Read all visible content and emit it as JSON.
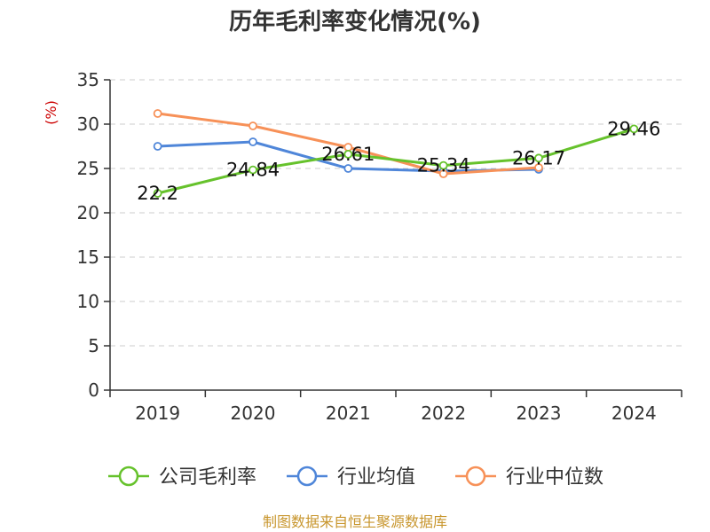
{
  "chart_data": {
    "type": "line",
    "title": "历年毛利率变化情况(%)",
    "unit_label": "(%)",
    "categories": [
      "2019",
      "2020",
      "2021",
      "2022",
      "2023",
      "2024"
    ],
    "ylim": [
      0,
      35
    ],
    "yticks": [
      0,
      5,
      10,
      15,
      20,
      25,
      30,
      35
    ],
    "grid": true,
    "legend_position": "bottom",
    "series": [
      {
        "name": "公司毛利率",
        "color": "#66c22c",
        "values": [
          22.2,
          24.84,
          26.61,
          25.34,
          26.17,
          29.46
        ],
        "labels": [
          "22.2",
          "24.84",
          "26.61",
          "25.34",
          "26.17",
          "29.46"
        ]
      },
      {
        "name": "行业均值",
        "color": "#4f86d9",
        "values": [
          27.5,
          28.0,
          25.0,
          24.7,
          24.9,
          null
        ]
      },
      {
        "name": "行业中位数",
        "color": "#f79158",
        "values": [
          31.2,
          29.8,
          27.4,
          24.4,
          25.1,
          null
        ]
      }
    ],
    "source": "制图数据来自恒生聚源数据库"
  }
}
